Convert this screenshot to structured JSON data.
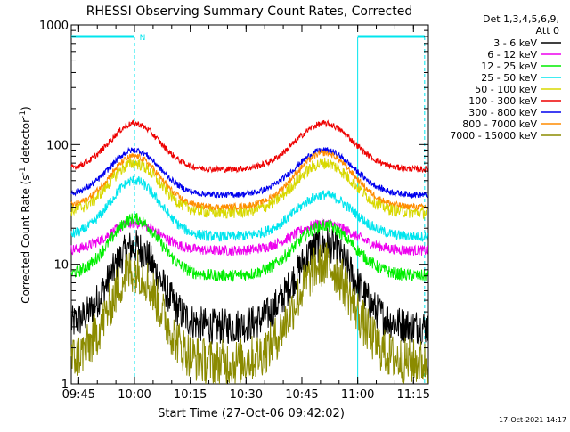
{
  "chart_data": {
    "type": "line",
    "title": "RHESSI Observing Summary Count Rates, Corrected",
    "xlabel": "Start Time (27-Oct-06 09:42:02)",
    "ylabel": "Corrected Count Rate (s",
    "ylabel_sup1": "-1",
    "ylabel_mid": " detector",
    "ylabel_sup2": "-1",
    "ylabel_end": ")",
    "y_scale": "log",
    "ylim": [
      1,
      1000
    ],
    "xlim": [
      "09:43",
      "11:19"
    ],
    "x_ticks": [
      "09:45",
      "10:00",
      "10:15",
      "10:30",
      "10:45",
      "11:00",
      "11:15"
    ],
    "y_ticks": [
      "1",
      "10",
      "100",
      "1000"
    ],
    "legend_header": [
      "Det 1,3,4,5,6,9,",
      "Att 0"
    ],
    "footer_date": "17-Oct-2021 14:17",
    "markers": {
      "night_label": "N",
      "night_times": [
        "09:43",
        "10:00"
      ],
      "saa_times": [
        "11:00",
        "11:18"
      ],
      "bar_color": "#00e5ee"
    },
    "series": [
      {
        "name": "3 - 6 keV",
        "color": "#000000",
        "base": 3,
        "peak": 14,
        "peak2": 15,
        "noise": 0.35
      },
      {
        "name": "6 - 12 keV",
        "color": "#ee00ee",
        "base": 13,
        "peak": 22,
        "peak2": 22,
        "noise": 0.1
      },
      {
        "name": "12 - 25 keV",
        "color": "#00ee00",
        "base": 8,
        "peak": 24,
        "peak2": 21,
        "noise": 0.12
      },
      {
        "name": "25 - 50 keV",
        "color": "#00e5ee",
        "base": 17,
        "peak": 50,
        "peak2": 38,
        "noise": 0.1
      },
      {
        "name": "50 - 100 keV",
        "color": "#d8d800",
        "base": 27,
        "peak": 70,
        "peak2": 70,
        "noise": 0.12
      },
      {
        "name": "100 - 300 keV",
        "color": "#ee0000",
        "base": 62,
        "peak": 150,
        "peak2": 150,
        "noise": 0.06
      },
      {
        "name": "300 - 800 keV",
        "color": "#0000ee",
        "base": 38,
        "peak": 90,
        "peak2": 90,
        "noise": 0.06
      },
      {
        "name": "800 - 7000 keV",
        "color": "#ff8c00",
        "base": 30,
        "peak": 80,
        "peak2": 85,
        "noise": 0.06
      },
      {
        "name": "7000 - 15000 keV",
        "color": "#8b8b00",
        "base": 1.5,
        "peak": 9,
        "peak2": 10,
        "noise": 0.45
      }
    ],
    "peaks_at": [
      "10:00",
      "10:51"
    ],
    "grid": false,
    "legend_placement": "right"
  }
}
